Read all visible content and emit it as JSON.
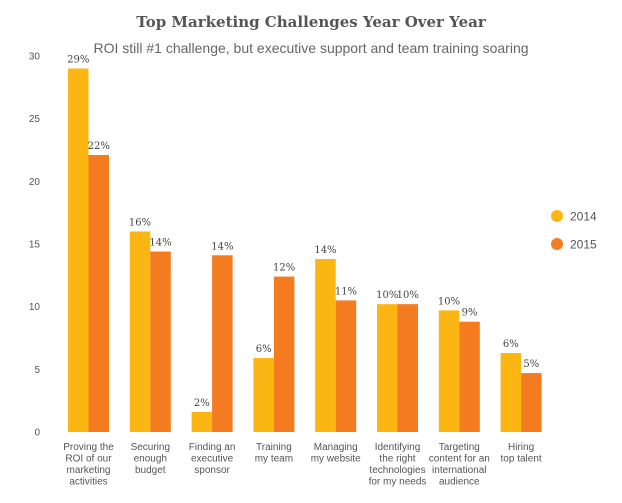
{
  "chart_data": {
    "type": "bar",
    "title": "Top Marketing Challenges Year Over Year",
    "subtitle": "ROI still #1 challenge, but executive support and team training soaring",
    "xlabel": "",
    "ylabel": "",
    "ylim": [
      0,
      30
    ],
    "yticks": [
      0,
      5,
      10,
      15,
      20,
      25,
      30
    ],
    "grid": false,
    "legend_position": "right",
    "categories": [
      [
        "Proving the",
        "ROI of our",
        "marketing",
        "activities"
      ],
      [
        "Securing",
        "enough",
        "budget"
      ],
      [
        "Finding an",
        "executive",
        "sponsor"
      ],
      [
        "Training",
        "my team"
      ],
      [
        "Managing",
        "my website"
      ],
      [
        "Identifying",
        "the right",
        "technologies",
        "for my needs"
      ],
      [
        "Targeting",
        "content for an",
        "international",
        "audience"
      ],
      [
        "Hiring",
        "top talent"
      ]
    ],
    "series": [
      {
        "name": "2014",
        "color": "#FBB613",
        "values": [
          29,
          16,
          1.6,
          5.9,
          13.8,
          10.2,
          9.7,
          6.3
        ],
        "labels": [
          "29%",
          "16%",
          "2%",
          "6%",
          "14%",
          "10%",
          "10%",
          "6%"
        ]
      },
      {
        "name": "2015",
        "color": "#F47B20",
        "values": [
          22.1,
          14.4,
          14.1,
          12.4,
          10.5,
          10.2,
          8.8,
          4.7
        ],
        "labels": [
          "22%",
          "14%",
          "14%",
          "12%",
          "11%",
          "10%",
          "9%",
          "5%"
        ]
      }
    ]
  }
}
